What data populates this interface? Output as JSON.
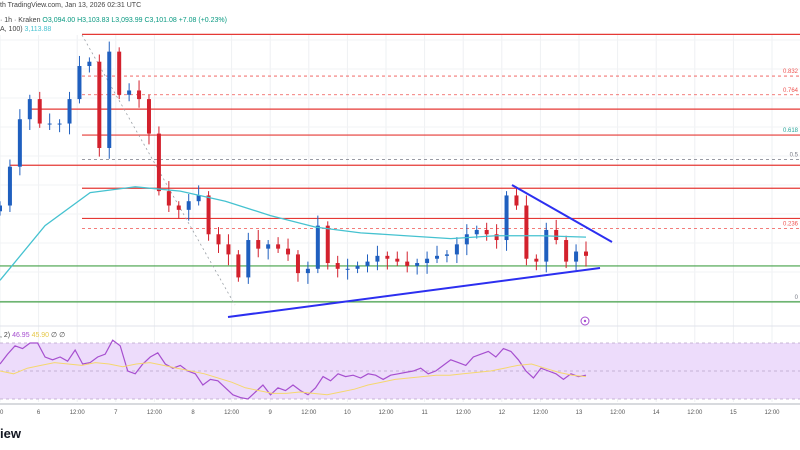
{
  "header": {
    "source_line": "th TradingView.com, Jan 13, 2026 02:31 UTC",
    "symbol_line": "· 1h · Kraken",
    "open": "O3,094.00",
    "high": "H3,103.83",
    "low": "L3,093.99",
    "close": "C3,101.08",
    "change": "+7.08 (+0.23%)",
    "sma_label": "A, 100)",
    "sma_value": "3,113.88"
  },
  "rsi_legend": {
    "label": ", 2)",
    "rsi": "46.95",
    "ma": "45.90",
    "extra1": "∅",
    "extra2": "∅"
  },
  "watermark": "iew",
  "colors": {
    "up": "#089981",
    "down": "#f23645",
    "candle_up": "#1f5fbf",
    "candle_down": "#d3212d",
    "sma": "#45c2d0",
    "trend": "#2c2ff0",
    "resistance": "#e53935",
    "support": "#43a047",
    "rsi": "#a64fcf",
    "rsi_ma": "#f5d76e",
    "rsi_band": "#eddcfb"
  },
  "chart_data": {
    "type": "candlestick",
    "interval": "1h",
    "closes": [
      3136,
      3163,
      3196,
      3210,
      3193,
      3193,
      3193,
      3210,
      3233,
      3236,
      3176,
      3243,
      3213,
      3216,
      3210,
      3186,
      3146,
      3136,
      3133,
      3139,
      3143,
      3116,
      3109,
      3102,
      3086,
      3112,
      3106,
      3109,
      3106,
      3102,
      3089,
      3092,
      3122,
      3096,
      3092,
      3092,
      3094,
      3097,
      3101,
      3099,
      3097,
      3094,
      3096,
      3099,
      3101,
      3102,
      3109,
      3116,
      3119,
      3116,
      3112,
      3143,
      3136,
      3099,
      3097,
      3119,
      3112,
      3097,
      3104,
      3101
    ],
    "sma100": [
      3084,
      3122,
      3145,
      3149,
      3146,
      3139,
      3129,
      3121,
      3117,
      3115,
      3113,
      3115,
      3115,
      3114
    ],
    "price_range": [
      3055,
      3265
    ],
    "x_tick_labels": [
      "00",
      "6",
      "12:00",
      "7",
      "12:00",
      "8",
      "12:00",
      "9",
      "12:00",
      "10",
      "12:00",
      "11",
      "12:00",
      "12",
      "12:00",
      "13",
      "12:00",
      "14",
      "12:00",
      "15",
      "12:00"
    ],
    "horizontal_resistance": [
      3255,
      3203,
      3185,
      3164,
      3148,
      3127
    ],
    "horizontal_support": [
      3094,
      3069
    ],
    "fib_levels": [
      {
        "label": "0.832",
        "price": 3226,
        "color": "#ef5350"
      },
      {
        "label": "0.764",
        "price": 3213,
        "color": "#ef5350"
      },
      {
        "label": "0.618",
        "price": 3185,
        "color": "#26a69a"
      },
      {
        "label": "0.5",
        "price": 3168,
        "color": "#787b86"
      },
      {
        "label": "0.236",
        "price": 3120,
        "color": "#ef5350"
      },
      {
        "label": "0",
        "price": 3069,
        "color": "#787b86"
      }
    ],
    "rsi": [
      55,
      62,
      68,
      66,
      70,
      70,
      60,
      58,
      60,
      57,
      65,
      55,
      56,
      60,
      62,
      72,
      68,
      50,
      48,
      55,
      60,
      63,
      55,
      52,
      54,
      50,
      48,
      40,
      44,
      43,
      38,
      33,
      31,
      30,
      35,
      40,
      33,
      38,
      36,
      40,
      36,
      33,
      38,
      46,
      43,
      48,
      46,
      47,
      45,
      48,
      47,
      44,
      47,
      48,
      49,
      50,
      52,
      48,
      50,
      54,
      58,
      56,
      54,
      60,
      62,
      64,
      60,
      66,
      64,
      58,
      50,
      45,
      52,
      50,
      48,
      44,
      48,
      46,
      47
    ],
    "rsi_ma": [
      50,
      48,
      52,
      54,
      56,
      55,
      54,
      56,
      55,
      53,
      55,
      56,
      54,
      52,
      50,
      48,
      45,
      42,
      38,
      36,
      34,
      34,
      35,
      34,
      33,
      35,
      37,
      40,
      42,
      44,
      45,
      46,
      47,
      47,
      48,
      49,
      50,
      52,
      54,
      55,
      52,
      49,
      47,
      46
    ],
    "rsi_levels": [
      70,
      50,
      30
    ]
  }
}
